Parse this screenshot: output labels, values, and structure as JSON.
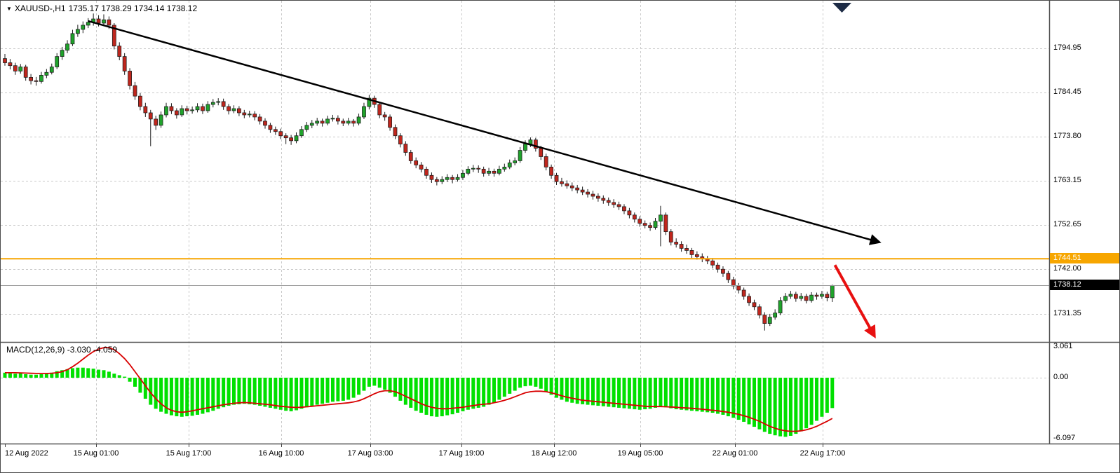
{
  "legend": {
    "dropdown_icon": "▼",
    "symbol_period": "XAUUSD-,H1",
    "ohlc": "1735.17 1738.29 1734.14 1738.12"
  },
  "indicator_label": {
    "text": "MACD(12,26,9) -3.030 -4.059"
  },
  "price_tags": {
    "orange": "1744.51",
    "current": "1738.12"
  },
  "colors": {
    "bull": "#1fa32b",
    "bear": "#c0261d",
    "outline": "#1b1b1b",
    "hist": "#00e000",
    "signal": "#d80000",
    "trend": "#000000",
    "arrow": "#e81010",
    "orange_line": "#f7a600",
    "current_line": "#9b9b9b",
    "grid": "#c9c9c9",
    "separator": "#555555",
    "shift_marker": "#1d2b45"
  },
  "chart_data": {
    "type": "candlestick",
    "title": "XAUUSD- H1 with MACD(12,26,9)",
    "symbol": "XAUUSD-",
    "timeframe": "H1",
    "last_ohlc": {
      "open": 1735.17,
      "high": 1738.29,
      "low": 1734.14,
      "close": 1738.12
    },
    "current_price": 1738.12,
    "ylim": [
      1726,
      1806
    ],
    "price_tick_values": [
      1794.95,
      1784.45,
      1773.8,
      1763.15,
      1752.65,
      1742.0,
      1731.35
    ],
    "price_tick_labels": [
      "1794.95",
      "1784.45",
      "1773.80",
      "1763.15",
      "1752.65",
      "1742.00",
      "1731.35"
    ],
    "time_labels": [
      "12 Aug 2022",
      "15 Aug 01:00",
      "15 Aug 17:00",
      "16 Aug 10:00",
      "17 Aug 03:00",
      "17 Aug 19:00",
      "18 Aug 12:00",
      "19 Aug 05:00",
      "22 Aug 01:00",
      "22 Aug 17:00"
    ],
    "candles": [
      [
        1792.5,
        1793.6,
        1790.8,
        1791.5
      ],
      [
        1791.5,
        1792.4,
        1789.9,
        1790.8
      ],
      [
        1790.8,
        1791.5,
        1788.6,
        1789.5
      ],
      [
        1789.5,
        1791.2,
        1788.9,
        1790.5
      ],
      [
        1790.5,
        1791.0,
        1787.2,
        1788.0
      ],
      [
        1788.0,
        1788.8,
        1786.3,
        1787.2
      ],
      [
        1787.2,
        1788.1,
        1786.0,
        1787.0
      ],
      [
        1787.0,
        1789.3,
        1786.5,
        1788.5
      ],
      [
        1788.5,
        1790.0,
        1787.8,
        1789.2
      ],
      [
        1789.2,
        1791.3,
        1788.7,
        1790.5
      ],
      [
        1790.5,
        1793.8,
        1790.0,
        1793.0
      ],
      [
        1793.0,
        1795.3,
        1792.2,
        1794.5
      ],
      [
        1794.5,
        1796.9,
        1793.8,
        1796.0
      ],
      [
        1796.0,
        1799.4,
        1795.5,
        1798.5
      ],
      [
        1798.5,
        1800.6,
        1797.7,
        1799.5
      ],
      [
        1799.5,
        1801.4,
        1798.6,
        1800.5
      ],
      [
        1800.5,
        1802.2,
        1799.8,
        1801.2
      ],
      [
        1801.2,
        1803.3,
        1800.4,
        1802.0
      ],
      [
        1802.0,
        1802.9,
        1800.2,
        1801.0
      ],
      [
        1801.0,
        1803.1,
        1800.3,
        1801.8
      ],
      [
        1801.8,
        1802.6,
        1799.6,
        1800.5
      ],
      [
        1800.5,
        1801.0,
        1794.7,
        1795.5
      ],
      [
        1795.5,
        1796.4,
        1792.1,
        1793.0
      ],
      [
        1793.0,
        1793.8,
        1788.6,
        1789.5
      ],
      [
        1789.5,
        1790.2,
        1785.1,
        1786.0
      ],
      [
        1786.0,
        1786.9,
        1782.6,
        1783.5
      ],
      [
        1783.5,
        1784.2,
        1780.1,
        1781.0
      ],
      [
        1781.0,
        1781.9,
        1778.5,
        1779.5
      ],
      [
        1779.5,
        1780.2,
        1771.5,
        1778.0
      ],
      [
        1778.0,
        1778.8,
        1775.4,
        1776.5
      ],
      [
        1776.5,
        1779.8,
        1775.9,
        1779.0
      ],
      [
        1779.0,
        1781.9,
        1778.4,
        1781.0
      ],
      [
        1781.0,
        1781.8,
        1779.2,
        1780.0
      ],
      [
        1780.0,
        1780.6,
        1778.1,
        1779.0
      ],
      [
        1779.0,
        1781.3,
        1778.5,
        1780.5
      ],
      [
        1780.5,
        1781.2,
        1779.1,
        1780.0
      ],
      [
        1780.0,
        1781.0,
        1779.3,
        1780.2
      ],
      [
        1780.2,
        1781.8,
        1779.6,
        1781.0
      ],
      [
        1781.0,
        1781.7,
        1779.2,
        1780.0
      ],
      [
        1780.0,
        1782.3,
        1779.5,
        1781.5
      ],
      [
        1781.5,
        1782.8,
        1780.8,
        1782.0
      ],
      [
        1782.0,
        1783.0,
        1781.3,
        1782.2
      ],
      [
        1782.2,
        1782.9,
        1780.2,
        1781.0
      ],
      [
        1781.0,
        1781.6,
        1779.1,
        1780.0
      ],
      [
        1780.0,
        1781.3,
        1779.4,
        1780.5
      ],
      [
        1780.5,
        1781.1,
        1778.7,
        1779.5
      ],
      [
        1779.5,
        1780.2,
        1778.2,
        1779.0
      ],
      [
        1779.0,
        1780.0,
        1778.4,
        1779.2
      ],
      [
        1779.2,
        1779.9,
        1777.7,
        1778.5
      ],
      [
        1778.5,
        1779.2,
        1776.7,
        1777.5
      ],
      [
        1777.5,
        1778.2,
        1775.7,
        1776.5
      ],
      [
        1776.5,
        1777.1,
        1774.7,
        1775.5
      ],
      [
        1775.5,
        1776.2,
        1774.2,
        1775.0
      ],
      [
        1775.0,
        1775.7,
        1773.2,
        1774.0
      ],
      [
        1774.0,
        1774.6,
        1772.0,
        1773.5
      ],
      [
        1773.5,
        1774.2,
        1771.8,
        1772.8
      ],
      [
        1772.8,
        1774.8,
        1772.2,
        1774.0
      ],
      [
        1774.0,
        1776.3,
        1773.5,
        1775.5
      ],
      [
        1775.5,
        1777.3,
        1774.9,
        1776.5
      ],
      [
        1776.5,
        1777.8,
        1775.8,
        1777.0
      ],
      [
        1777.0,
        1778.3,
        1776.4,
        1777.5
      ],
      [
        1777.5,
        1778.1,
        1776.2,
        1777.0
      ],
      [
        1777.0,
        1778.8,
        1776.5,
        1778.0
      ],
      [
        1778.0,
        1779.0,
        1777.4,
        1778.2
      ],
      [
        1778.2,
        1778.9,
        1776.7,
        1777.5
      ],
      [
        1777.5,
        1778.1,
        1776.3,
        1777.0
      ],
      [
        1777.0,
        1778.3,
        1776.5,
        1777.5
      ],
      [
        1777.5,
        1778.0,
        1776.2,
        1777.0
      ],
      [
        1777.0,
        1779.3,
        1776.5,
        1778.5
      ],
      [
        1778.5,
        1781.9,
        1778.0,
        1781.0
      ],
      [
        1781.0,
        1783.8,
        1780.3,
        1783.0
      ],
      [
        1783.0,
        1783.6,
        1780.7,
        1781.5
      ],
      [
        1781.5,
        1782.1,
        1778.2,
        1779.0
      ],
      [
        1779.0,
        1779.7,
        1777.6,
        1778.5
      ],
      [
        1778.5,
        1779.1,
        1775.2,
        1776.0
      ],
      [
        1776.0,
        1776.7,
        1773.2,
        1774.0
      ],
      [
        1774.0,
        1774.6,
        1771.2,
        1772.0
      ],
      [
        1772.0,
        1772.7,
        1769.2,
        1770.0
      ],
      [
        1770.0,
        1770.6,
        1767.3,
        1768.0
      ],
      [
        1768.0,
        1768.8,
        1766.2,
        1767.0
      ],
      [
        1767.0,
        1767.7,
        1765.2,
        1766.0
      ],
      [
        1766.0,
        1766.6,
        1763.7,
        1764.5
      ],
      [
        1764.5,
        1765.2,
        1762.7,
        1763.5
      ],
      [
        1763.5,
        1764.1,
        1762.1,
        1763.0
      ],
      [
        1763.0,
        1764.3,
        1762.4,
        1763.5
      ],
      [
        1763.5,
        1764.8,
        1762.9,
        1764.0
      ],
      [
        1764.0,
        1764.6,
        1762.6,
        1763.5
      ],
      [
        1763.5,
        1764.8,
        1763.0,
        1764.0
      ],
      [
        1764.0,
        1765.8,
        1763.4,
        1765.0
      ],
      [
        1765.0,
        1766.7,
        1764.5,
        1766.0
      ],
      [
        1766.0,
        1767.0,
        1765.3,
        1766.2
      ],
      [
        1766.2,
        1766.9,
        1765.1,
        1766.0
      ],
      [
        1766.0,
        1766.6,
        1764.2,
        1765.0
      ],
      [
        1765.0,
        1766.3,
        1764.4,
        1765.5
      ],
      [
        1765.5,
        1766.1,
        1764.2,
        1765.0
      ],
      [
        1765.0,
        1766.8,
        1764.5,
        1766.0
      ],
      [
        1766.0,
        1767.3,
        1765.4,
        1766.5
      ],
      [
        1766.5,
        1768.3,
        1766.0,
        1767.5
      ],
      [
        1767.5,
        1768.8,
        1766.9,
        1768.0
      ],
      [
        1768.0,
        1771.3,
        1767.5,
        1770.5
      ],
      [
        1770.5,
        1772.9,
        1769.9,
        1772.0
      ],
      [
        1772.0,
        1773.6,
        1771.3,
        1773.0
      ],
      [
        1773.0,
        1773.5,
        1770.2,
        1771.0
      ],
      [
        1771.0,
        1771.6,
        1768.2,
        1769.0
      ],
      [
        1769.0,
        1769.7,
        1765.7,
        1766.5
      ],
      [
        1766.5,
        1767.1,
        1763.7,
        1764.5
      ],
      [
        1764.5,
        1765.1,
        1762.2,
        1763.0
      ],
      [
        1763.0,
        1763.9,
        1761.8,
        1762.5
      ],
      [
        1762.5,
        1763.3,
        1761.3,
        1762.0
      ],
      [
        1762.0,
        1762.8,
        1760.7,
        1761.5
      ],
      [
        1761.5,
        1762.2,
        1760.2,
        1761.0
      ],
      [
        1761.0,
        1761.8,
        1759.8,
        1760.5
      ],
      [
        1760.5,
        1761.2,
        1759.2,
        1760.0
      ],
      [
        1760.0,
        1760.8,
        1758.7,
        1759.5
      ],
      [
        1759.5,
        1760.2,
        1758.2,
        1759.0
      ],
      [
        1759.0,
        1759.7,
        1757.7,
        1758.5
      ],
      [
        1758.5,
        1759.2,
        1757.2,
        1758.0
      ],
      [
        1758.0,
        1758.8,
        1756.7,
        1757.5
      ],
      [
        1757.5,
        1758.2,
        1756.2,
        1757.0
      ],
      [
        1757.0,
        1757.6,
        1755.2,
        1756.0
      ],
      [
        1756.0,
        1756.7,
        1754.2,
        1755.0
      ],
      [
        1755.0,
        1755.6,
        1753.2,
        1754.0
      ],
      [
        1754.0,
        1754.7,
        1752.2,
        1753.0
      ],
      [
        1753.0,
        1753.7,
        1751.8,
        1752.5
      ],
      [
        1752.5,
        1753.2,
        1751.2,
        1752.0
      ],
      [
        1752.0,
        1754.3,
        1751.5,
        1753.5
      ],
      [
        1753.5,
        1757.2,
        1747.5,
        1755.0
      ],
      [
        1755.0,
        1755.6,
        1750.2,
        1751.0
      ],
      [
        1751.0,
        1751.6,
        1747.7,
        1748.5
      ],
      [
        1748.5,
        1749.4,
        1747.2,
        1748.0
      ],
      [
        1748.0,
        1748.7,
        1746.2,
        1747.0
      ],
      [
        1747.0,
        1747.9,
        1745.7,
        1746.5
      ],
      [
        1746.5,
        1747.1,
        1744.7,
        1745.5
      ],
      [
        1745.5,
        1746.3,
        1744.3,
        1745.0
      ],
      [
        1745.0,
        1745.8,
        1743.7,
        1744.5
      ],
      [
        1744.5,
        1745.2,
        1743.2,
        1744.0
      ],
      [
        1744.0,
        1744.7,
        1742.2,
        1743.0
      ],
      [
        1743.0,
        1743.6,
        1741.2,
        1742.0
      ],
      [
        1742.0,
        1742.7,
        1740.2,
        1741.0
      ],
      [
        1741.0,
        1741.6,
        1738.7,
        1739.5
      ],
      [
        1739.5,
        1740.2,
        1737.2,
        1738.0
      ],
      [
        1738.0,
        1738.7,
        1736.2,
        1737.0
      ],
      [
        1737.0,
        1737.6,
        1734.7,
        1735.5
      ],
      [
        1735.5,
        1736.2,
        1733.2,
        1734.0
      ],
      [
        1734.0,
        1734.7,
        1732.2,
        1733.0
      ],
      [
        1733.0,
        1733.6,
        1730.2,
        1731.0
      ],
      [
        1731.0,
        1731.7,
        1727.3,
        1729.0
      ],
      [
        1729.0,
        1731.3,
        1728.4,
        1730.5
      ],
      [
        1730.5,
        1732.4,
        1729.9,
        1731.5
      ],
      [
        1731.5,
        1735.3,
        1731.0,
        1734.5
      ],
      [
        1734.5,
        1736.3,
        1733.9,
        1735.5
      ],
      [
        1735.5,
        1736.8,
        1734.9,
        1736.0
      ],
      [
        1736.0,
        1736.6,
        1734.2,
        1735.0
      ],
      [
        1735.0,
        1736.3,
        1734.4,
        1735.5
      ],
      [
        1735.5,
        1736.1,
        1733.8,
        1734.5
      ],
      [
        1734.5,
        1736.5,
        1734.0,
        1735.8
      ],
      [
        1735.8,
        1736.4,
        1734.7,
        1735.5
      ],
      [
        1735.5,
        1736.8,
        1734.9,
        1736.0
      ],
      [
        1736.0,
        1736.6,
        1734.3,
        1735.2
      ],
      [
        1735.17,
        1738.29,
        1734.14,
        1738.12
      ]
    ],
    "indicator": {
      "name": "MACD",
      "params": [
        12,
        26,
        9
      ],
      "main_last": -3.03,
      "signal_last": -4.059,
      "scale_labels": [
        "3.061",
        "0.00",
        "-6.097"
      ],
      "scale_values": [
        3.061,
        0.0,
        -6.097
      ],
      "histogram": [
        0.5,
        0.45,
        0.4,
        0.45,
        0.35,
        0.3,
        0.3,
        0.35,
        0.4,
        0.5,
        0.65,
        0.75,
        0.85,
        0.95,
        1.0,
        1.0,
        0.95,
        0.9,
        0.8,
        0.75,
        0.6,
        0.4,
        0.25,
        0.1,
        -0.4,
        -0.9,
        -1.5,
        -2.1,
        -2.7,
        -3.1,
        -3.4,
        -3.6,
        -3.75,
        -3.85,
        -3.9,
        -3.85,
        -3.8,
        -3.7,
        -3.6,
        -3.45,
        -3.3,
        -3.1,
        -2.95,
        -2.8,
        -2.7,
        -2.65,
        -2.6,
        -2.65,
        -2.7,
        -2.8,
        -2.9,
        -3.0,
        -3.1,
        -3.2,
        -3.3,
        -3.35,
        -3.25,
        -3.1,
        -2.95,
        -2.8,
        -2.7,
        -2.6,
        -2.5,
        -2.4,
        -2.35,
        -2.3,
        -2.2,
        -2.0,
        -1.7,
        -1.3,
        -0.9,
        -0.8,
        -1.0,
        -1.2,
        -1.5,
        -1.9,
        -2.3,
        -2.7,
        -3.0,
        -3.3,
        -3.5,
        -3.7,
        -3.85,
        -3.9,
        -3.85,
        -3.75,
        -3.65,
        -3.5,
        -3.35,
        -3.2,
        -3.1,
        -3.0,
        -2.9,
        -2.7,
        -2.5,
        -2.2,
        -1.9,
        -1.6,
        -1.3,
        -1.0,
        -0.85,
        -0.8,
        -0.9,
        -1.1,
        -1.4,
        -1.7,
        -2.0,
        -2.2,
        -2.4,
        -2.5,
        -2.6,
        -2.65,
        -2.7,
        -2.75,
        -2.8,
        -2.85,
        -2.9,
        -2.95,
        -3.0,
        -3.05,
        -3.1,
        -3.15,
        -3.2,
        -3.15,
        -3.1,
        -3.0,
        -2.9,
        -2.95,
        -3.05,
        -3.15,
        -3.2,
        -3.25,
        -3.3,
        -3.35,
        -3.4,
        -3.45,
        -3.5,
        -3.6,
        -3.7,
        -3.85,
        -4.0,
        -4.2,
        -4.4,
        -4.65,
        -4.9,
        -5.15,
        -5.4,
        -5.6,
        -5.75,
        -5.85,
        -5.9,
        -5.8,
        -5.6,
        -5.35,
        -5.05,
        -4.7,
        -4.3,
        -3.9,
        -3.5,
        -3.03
      ],
      "signal": [
        0.5,
        0.5,
        0.5,
        0.48,
        0.46,
        0.44,
        0.43,
        0.42,
        0.42,
        0.45,
        0.5,
        0.6,
        0.8,
        1.1,
        1.45,
        1.85,
        2.25,
        2.6,
        2.85,
        3.0,
        3.0,
        2.8,
        2.4,
        1.9,
        1.3,
        0.6,
        -0.1,
        -0.8,
        -1.5,
        -2.1,
        -2.6,
        -3.0,
        -3.25,
        -3.4,
        -3.45,
        -3.4,
        -3.3,
        -3.2,
        -3.1,
        -3.0,
        -2.9,
        -2.8,
        -2.7,
        -2.62,
        -2.55,
        -2.5,
        -2.48,
        -2.5,
        -2.55,
        -2.6,
        -2.65,
        -2.7,
        -2.78,
        -2.85,
        -2.9,
        -2.95,
        -2.97,
        -2.95,
        -2.9,
        -2.85,
        -2.8,
        -2.75,
        -2.7,
        -2.65,
        -2.6,
        -2.55,
        -2.5,
        -2.42,
        -2.3,
        -2.1,
        -1.85,
        -1.6,
        -1.4,
        -1.3,
        -1.3,
        -1.4,
        -1.6,
        -1.85,
        -2.1,
        -2.35,
        -2.6,
        -2.8,
        -2.95,
        -3.05,
        -3.1,
        -3.1,
        -3.05,
        -3.0,
        -2.95,
        -2.85,
        -2.78,
        -2.7,
        -2.65,
        -2.6,
        -2.5,
        -2.4,
        -2.25,
        -2.1,
        -1.9,
        -1.7,
        -1.5,
        -1.4,
        -1.35,
        -1.35,
        -1.4,
        -1.5,
        -1.65,
        -1.8,
        -1.95,
        -2.05,
        -2.15,
        -2.25,
        -2.3,
        -2.35,
        -2.4,
        -2.45,
        -2.5,
        -2.55,
        -2.6,
        -2.65,
        -2.7,
        -2.75,
        -2.8,
        -2.85,
        -2.87,
        -2.88,
        -2.88,
        -2.9,
        -2.92,
        -2.95,
        -3.0,
        -3.02,
        -3.05,
        -3.1,
        -3.15,
        -3.2,
        -3.25,
        -3.3,
        -3.38,
        -3.45,
        -3.55,
        -3.65,
        -3.8,
        -3.95,
        -4.15,
        -4.35,
        -4.6,
        -4.85,
        -5.05,
        -5.2,
        -5.3,
        -5.35,
        -5.35,
        -5.3,
        -5.2,
        -5.05,
        -4.85,
        -4.6,
        -4.35,
        -4.06
      ]
    },
    "annotations": {
      "horizontal_line": {
        "price": 1744.51
      },
      "trendline": {
        "from": {
          "bar": 16,
          "price": 1801.5
        },
        "to": {
          "bar": 168,
          "price": 1748.5
        }
      },
      "red_arrow": {
        "from": {
          "bar": 159.5,
          "price": 1743.0
        },
        "to": {
          "bar": 167,
          "price": 1726.2
        }
      }
    }
  }
}
